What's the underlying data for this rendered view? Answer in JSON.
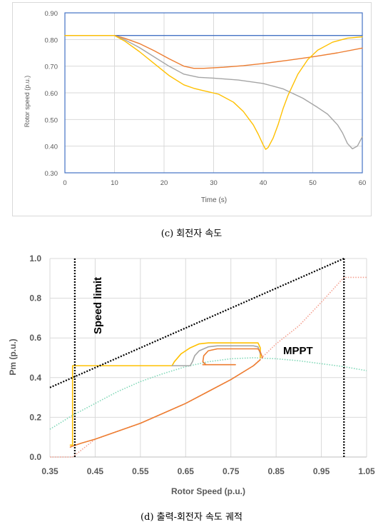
{
  "captions": {
    "c": "(c) 회전자 속도",
    "d": "(d) 출력-회전자 속도 궤적"
  },
  "chart_data": [
    {
      "type": "line",
      "title": "",
      "xlabel": "Time (s)",
      "ylabel": "Rotor speed (p.u.)",
      "xlim": [
        0,
        60
      ],
      "ylim": [
        0.3,
        0.9
      ],
      "xticks": [
        "0",
        "10",
        "20",
        "30",
        "40",
        "50",
        "60"
      ],
      "yticks": [
        "0.30",
        "0.40",
        "0.50",
        "0.60",
        "0.70",
        "0.80",
        "0.90"
      ],
      "grid": true,
      "legend": "none",
      "series": [
        {
          "color": "#4472C4",
          "x": [
            0,
            10,
            60
          ],
          "y": [
            0.815,
            0.815,
            0.815
          ]
        },
        {
          "color": "#ED7D31",
          "x": [
            0,
            10,
            12,
            15,
            18,
            21,
            24,
            26,
            28,
            32,
            36,
            40,
            45,
            50,
            55,
            60
          ],
          "y": [
            0.815,
            0.815,
            0.805,
            0.785,
            0.758,
            0.728,
            0.7,
            0.692,
            0.692,
            0.696,
            0.702,
            0.71,
            0.722,
            0.735,
            0.75,
            0.768
          ]
        },
        {
          "color": "#A5A5A5",
          "x": [
            0,
            10,
            12,
            15,
            18,
            21,
            24,
            27,
            30,
            35,
            40,
            44,
            48,
            51,
            53,
            55,
            56,
            57,
            58,
            59,
            60
          ],
          "y": [
            0.815,
            0.815,
            0.8,
            0.77,
            0.735,
            0.7,
            0.67,
            0.658,
            0.655,
            0.648,
            0.635,
            0.615,
            0.58,
            0.545,
            0.52,
            0.48,
            0.45,
            0.41,
            0.39,
            0.4,
            0.435
          ]
        },
        {
          "color": "#FFC000",
          "x": [
            0,
            10,
            12,
            15,
            18,
            21,
            24,
            26,
            28,
            31,
            34,
            36,
            38,
            39,
            40,
            40.5,
            41,
            42,
            43,
            44,
            45,
            47,
            49,
            51,
            54,
            57,
            60
          ],
          "y": [
            0.815,
            0.815,
            0.795,
            0.755,
            0.71,
            0.665,
            0.63,
            0.617,
            0.608,
            0.595,
            0.565,
            0.53,
            0.48,
            0.445,
            0.405,
            0.388,
            0.395,
            0.43,
            0.48,
            0.54,
            0.59,
            0.67,
            0.725,
            0.76,
            0.79,
            0.805,
            0.81
          ]
        }
      ]
    },
    {
      "type": "line",
      "title": "",
      "xlabel": "Rotor Speed (p.u.)",
      "ylabel": "Pm (p.u.)",
      "xlim": [
        0.35,
        1.05
      ],
      "ylim": [
        0.0,
        1.0
      ],
      "xticks": [
        "0.35",
        "0.45",
        "0.55",
        "0.65",
        "0.75",
        "0.85",
        "0.95",
        "1.05"
      ],
      "yticks": [
        "0.0",
        "0.2",
        "0.4",
        "0.6",
        "0.8",
        "1.0"
      ],
      "grid": true,
      "legend": "none",
      "annotations": {
        "speed_limit": "Speed limit",
        "mppt": "MPPT"
      },
      "series": [
        {
          "color": "#80D8B8",
          "style": "dotted",
          "x": [
            0.35,
            0.4,
            0.45,
            0.5,
            0.55,
            0.6,
            0.65,
            0.7,
            0.75,
            0.8,
            0.85,
            0.9,
            0.95,
            1.0,
            1.05
          ],
          "y": [
            0.14,
            0.21,
            0.27,
            0.33,
            0.38,
            0.42,
            0.455,
            0.48,
            0.495,
            0.5,
            0.495,
            0.485,
            0.47,
            0.455,
            0.435
          ]
        },
        {
          "color": "#F4A090",
          "style": "dotted",
          "x": [
            0.35,
            0.4,
            0.45,
            0.5,
            0.55,
            0.6,
            0.65,
            0.7,
            0.75,
            0.8,
            0.85,
            0.9,
            0.95,
            1.0,
            1.05
          ],
          "y": [
            0.0,
            0.0,
            0.09,
            0.13,
            0.17,
            0.22,
            0.27,
            0.33,
            0.39,
            0.46,
            0.57,
            0.66,
            0.78,
            0.905,
            0.905
          ]
        },
        {
          "color": "#ED7D31",
          "style": "solid",
          "x": [
            0.395,
            0.4,
            0.42,
            0.45,
            0.5,
            0.55,
            0.6,
            0.65,
            0.7,
            0.75,
            0.8,
            0.815
          ],
          "y": [
            0.05,
            0.055,
            0.07,
            0.09,
            0.13,
            0.17,
            0.22,
            0.27,
            0.33,
            0.39,
            0.46,
            0.49
          ]
        },
        {
          "color": "#FFC000",
          "style": "solid",
          "x": [
            0.395,
            0.4,
            0.4,
            0.62,
            0.625,
            0.64,
            0.66,
            0.68,
            0.7,
            0.72,
            0.8,
            0.81,
            0.815,
            0.815
          ],
          "y": [
            0.06,
            0.06,
            0.46,
            0.46,
            0.48,
            0.52,
            0.55,
            0.57,
            0.575,
            0.575,
            0.575,
            0.575,
            0.55,
            0.5
          ]
        },
        {
          "color": "#A5A5A5",
          "style": "solid",
          "x": [
            0.62,
            0.66,
            0.665,
            0.67,
            0.68,
            0.7,
            0.72,
            0.8,
            0.81,
            0.815
          ],
          "y": [
            0.46,
            0.46,
            0.48,
            0.51,
            0.535,
            0.555,
            0.56,
            0.56,
            0.555,
            0.52
          ]
        },
        {
          "color": "#ED7D31",
          "style": "solid",
          "x": [
            0.695,
            0.688,
            0.69,
            0.7,
            0.72,
            0.8,
            0.81,
            0.815,
            0.82
          ],
          "y": [
            0.465,
            0.48,
            0.51,
            0.535,
            0.545,
            0.545,
            0.545,
            0.53,
            0.5
          ]
        },
        {
          "color": "#ED7D31",
          "style": "solid",
          "x": [
            0.688,
            0.76
          ],
          "y": [
            0.465,
            0.465
          ]
        },
        {
          "color": "#000000",
          "style": "dotted",
          "x": [
            0.35,
            1.0
          ],
          "y": [
            0.35,
            1.0
          ]
        },
        {
          "color": "#000000",
          "style": "dotted",
          "x": [
            0.405,
            0.405
          ],
          "y": [
            0.0,
            1.0
          ]
        },
        {
          "color": "#000000",
          "style": "dotted",
          "x": [
            1.0,
            1.0
          ],
          "y": [
            0.0,
            1.0
          ]
        }
      ]
    }
  ]
}
